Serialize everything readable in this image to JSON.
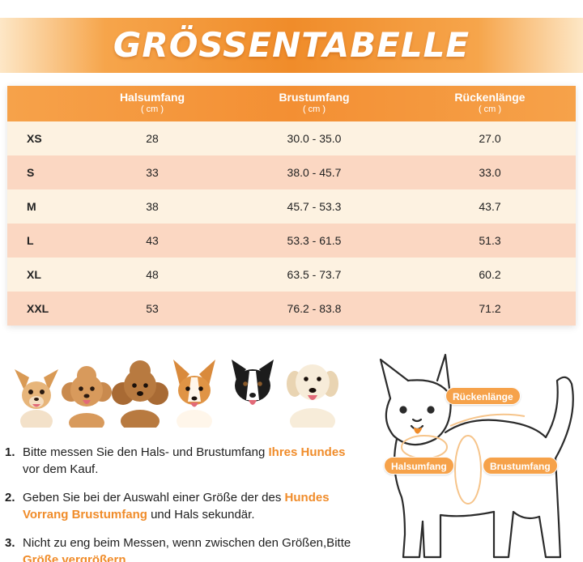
{
  "title": "GRÖSSENTABELLE",
  "table": {
    "headers": [
      {
        "label": "Halsumfang",
        "unit": "( cm )"
      },
      {
        "label": "Brustumfang",
        "unit": "( cm )"
      },
      {
        "label": "Rückenlänge",
        "unit": "( cm )"
      }
    ],
    "rows": [
      {
        "size": "XS",
        "neck": "28",
        "chest": "30.0 - 35.0",
        "back": "27.0"
      },
      {
        "size": "S",
        "neck": "33",
        "chest": "38.0 - 45.7",
        "back": "33.0"
      },
      {
        "size": "M",
        "neck": "38",
        "chest": "45.7 - 53.3",
        "back": "43.7"
      },
      {
        "size": "L",
        "neck": "43",
        "chest": "53.3 - 61.5",
        "back": "51.3"
      },
      {
        "size": "XL",
        "neck": "48",
        "chest": "63.5 - 73.7",
        "back": "60.2"
      },
      {
        "size": "XXL",
        "neck": "53",
        "chest": "76.2 - 83.8",
        "back": "71.2"
      }
    ]
  },
  "instructions": [
    {
      "num": "1.",
      "a": "Bitte messen Sie den Hals- und Brustumfang ",
      "b": "Ihres Hundes",
      "c": " vor dem Kauf."
    },
    {
      "num": "2.",
      "a": "Geben Sie bei der Auswahl einer Größe der des ",
      "b": "Hundes Vorrang Brustumfang",
      "c": " und Hals sekundär."
    },
    {
      "num": "3.",
      "a": "Nicht zu eng beim Messen, wenn zwischen den Größen,Bitte ",
      "b": "Größe vergrößern",
      "c": "."
    }
  ],
  "diagram": {
    "back_label": "Rückenlänge",
    "neck_label": "Halsumfang",
    "chest_label": "Brustumfang"
  },
  "colors": {
    "accent": "#f08c2a",
    "row_light": "#fdf2e1",
    "row_dark": "#fbd7c2"
  },
  "dogs": [
    "chihuahua",
    "poodle",
    "toy-poodle",
    "corgi",
    "border-collie",
    "labrador"
  ]
}
